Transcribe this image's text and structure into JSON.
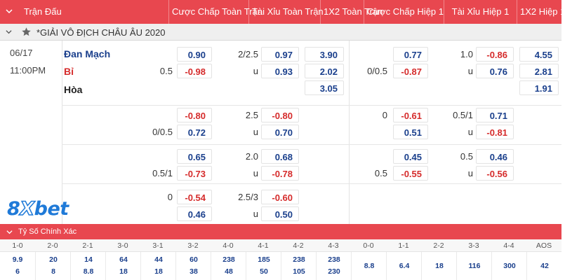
{
  "header": {
    "columns": [
      "Trận Đấu",
      "Cược Chấp Toàn Trận",
      "Tài Xỉu Toàn Trận",
      "1X2 Toàn Trận",
      "Cược Chấp Hiệp 1",
      "Tài Xỉu Hiệp 1",
      "1X2 Hiệp 1"
    ]
  },
  "league": {
    "name": "*GIẢI VÔ ĐỊCH CHÂU ÂU 2020"
  },
  "match": {
    "date": "06/17",
    "time": "11:00PM",
    "home": "Đan Mạch",
    "away": "Bỉ",
    "draw": "Hòa"
  },
  "rows": [
    {
      "ft_hdp_line": "",
      "ft_hdp_odds": "0.90",
      "ft_ou_line": "2/2.5",
      "ft_ou_odds": "0.97",
      "ft_1x2": "3.90",
      "h1_hdp_line": "",
      "h1_hdp_odds": "0.77",
      "h1_ou_line": "1.0",
      "h1_ou_odds": "-0.86",
      "h1_1x2": "4.55"
    },
    {
      "ft_hdp_line": "0.5",
      "ft_hdp_odds": "-0.98",
      "ft_ou_line": "u",
      "ft_ou_odds": "0.93",
      "ft_1x2": "2.02",
      "h1_hdp_line": "0/0.5",
      "h1_hdp_odds": "-0.87",
      "h1_ou_line": "u",
      "h1_ou_odds": "0.76",
      "h1_1x2": "2.81"
    },
    {
      "ft_1x2": "3.05",
      "h1_1x2": "1.91"
    },
    {
      "ft_hdp_line": "",
      "ft_hdp_odds": "-0.80",
      "ft_ou_line": "2.5",
      "ft_ou_odds": "-0.80",
      "h1_hdp_line": "0",
      "h1_hdp_odds": "-0.61",
      "h1_ou_line": "0.5/1",
      "h1_ou_odds": "0.71"
    },
    {
      "ft_hdp_line": "0/0.5",
      "ft_hdp_odds": "0.72",
      "ft_ou_line": "u",
      "ft_ou_odds": "0.70",
      "h1_hdp_line": "",
      "h1_hdp_odds": "0.51",
      "h1_ou_line": "u",
      "h1_ou_odds": "-0.81"
    },
    {
      "ft_hdp_line": "",
      "ft_hdp_odds": "0.65",
      "ft_ou_line": "2.0",
      "ft_ou_odds": "0.68",
      "h1_hdp_line": "",
      "h1_hdp_odds": "0.45",
      "h1_ou_line": "0.5",
      "h1_ou_odds": "0.46"
    },
    {
      "ft_hdp_line": "0.5/1",
      "ft_hdp_odds": "-0.73",
      "ft_ou_line": "u",
      "ft_ou_odds": "-0.78",
      "h1_hdp_line": "0.5",
      "h1_hdp_odds": "-0.55",
      "h1_ou_line": "u",
      "h1_ou_odds": "-0.56"
    },
    {
      "ft_hdp_line": "0",
      "ft_hdp_odds": "-0.54",
      "ft_ou_line": "2.5/3",
      "ft_ou_odds": "-0.60"
    },
    {
      "ft_hdp_line": "",
      "ft_hdp_odds": "0.46",
      "ft_ou_line": "u",
      "ft_ou_odds": "0.50"
    }
  ],
  "logo": {
    "text": "8Xbet"
  },
  "correct_score": {
    "title": "Tỷ Số Chính Xác",
    "labels": [
      "1-0",
      "2-0",
      "2-1",
      "3-0",
      "3-1",
      "3-2",
      "4-0",
      "4-1",
      "4-2",
      "4-3",
      "0-0",
      "1-1",
      "2-2",
      "3-3",
      "4-4",
      "AOS"
    ],
    "home_vals": [
      "9.9",
      "20",
      "14",
      "64",
      "44",
      "60",
      "238",
      "185",
      "238",
      "238"
    ],
    "away_vals": [
      "6",
      "8",
      "8.8",
      "18",
      "18",
      "38",
      "48",
      "50",
      "105",
      "230"
    ],
    "draw_vals": [
      "8.8",
      "6.4",
      "18",
      "116",
      "300",
      "42"
    ]
  },
  "colors": {
    "header_bg": "#e8474f",
    "home_blue": "#1a3f8c",
    "odds_red": "#d52b2b",
    "logo_blue": "#1f7ad8"
  }
}
